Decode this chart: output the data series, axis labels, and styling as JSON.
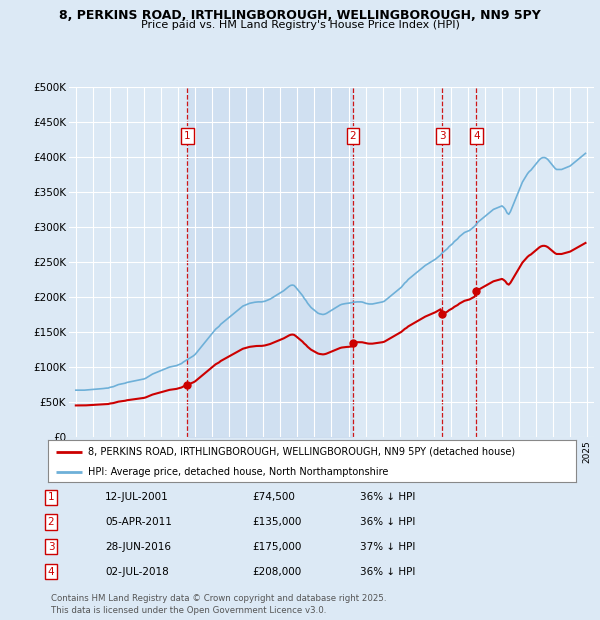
{
  "title_line1": "8, PERKINS ROAD, IRTHLINGBOROUGH, WELLINGBOROUGH, NN9 5PY",
  "title_line2": "Price paid vs. HM Land Registry's House Price Index (HPI)",
  "bg_color": "#dce9f5",
  "plot_bg_color": "#dce9f5",
  "red_line_color": "#cc0000",
  "blue_line_color": "#6eb0d8",
  "shade_color": "#c5d8ee",
  "marker_color": "#cc0000",
  "ylim": [
    0,
    500000
  ],
  "yticks": [
    0,
    50000,
    100000,
    150000,
    200000,
    250000,
    300000,
    350000,
    400000,
    450000,
    500000
  ],
  "ytick_labels": [
    "£0",
    "£50K",
    "£100K",
    "£150K",
    "£200K",
    "£250K",
    "£300K",
    "£350K",
    "£400K",
    "£450K",
    "£500K"
  ],
  "xlim_start": 1994.6,
  "xlim_end": 2025.4,
  "transactions": [
    {
      "num": 1,
      "year": 2001.53,
      "price": 74500,
      "date": "12-JUL-2001",
      "pct": "36%",
      "dir": "↓"
    },
    {
      "num": 2,
      "year": 2011.26,
      "price": 135000,
      "date": "05-APR-2011",
      "pct": "36%",
      "dir": "↓"
    },
    {
      "num": 3,
      "year": 2016.49,
      "price": 175000,
      "date": "28-JUN-2016",
      "pct": "37%",
      "dir": "↓"
    },
    {
      "num": 4,
      "year": 2018.5,
      "price": 208000,
      "date": "02-JUL-2018",
      "pct": "36%",
      "dir": "↓"
    }
  ],
  "legend_red": "8, PERKINS ROAD, IRTHLINGBOROUGH, WELLINGBOROUGH, NN9 5PY (detached house)",
  "legend_blue": "HPI: Average price, detached house, North Northamptonshire",
  "footer": "Contains HM Land Registry data © Crown copyright and database right 2025.\nThis data is licensed under the Open Government Licence v3.0.",
  "hpi_data": {
    "years": [
      1995.0,
      1995.1,
      1995.2,
      1995.3,
      1995.4,
      1995.5,
      1995.6,
      1995.7,
      1995.8,
      1995.9,
      1996.0,
      1996.1,
      1996.2,
      1996.3,
      1996.4,
      1996.5,
      1996.6,
      1996.7,
      1996.8,
      1996.9,
      1997.0,
      1997.1,
      1997.2,
      1997.3,
      1997.4,
      1997.5,
      1997.6,
      1997.7,
      1997.8,
      1997.9,
      1998.0,
      1998.1,
      1998.2,
      1998.3,
      1998.4,
      1998.5,
      1998.6,
      1998.7,
      1998.8,
      1998.9,
      1999.0,
      1999.1,
      1999.2,
      1999.3,
      1999.4,
      1999.5,
      1999.6,
      1999.7,
      1999.8,
      1999.9,
      2000.0,
      2000.1,
      2000.2,
      2000.3,
      2000.4,
      2000.5,
      2000.6,
      2000.7,
      2000.8,
      2000.9,
      2001.0,
      2001.1,
      2001.2,
      2001.3,
      2001.4,
      2001.5,
      2001.6,
      2001.7,
      2001.8,
      2001.9,
      2002.0,
      2002.1,
      2002.2,
      2002.3,
      2002.4,
      2002.5,
      2002.6,
      2002.7,
      2002.8,
      2002.9,
      2003.0,
      2003.1,
      2003.2,
      2003.3,
      2003.4,
      2003.5,
      2003.6,
      2003.7,
      2003.8,
      2003.9,
      2004.0,
      2004.1,
      2004.2,
      2004.3,
      2004.4,
      2004.5,
      2004.6,
      2004.7,
      2004.8,
      2004.9,
      2005.0,
      2005.1,
      2005.2,
      2005.3,
      2005.4,
      2005.5,
      2005.6,
      2005.7,
      2005.8,
      2005.9,
      2006.0,
      2006.1,
      2006.2,
      2006.3,
      2006.4,
      2006.5,
      2006.6,
      2006.7,
      2006.8,
      2006.9,
      2007.0,
      2007.1,
      2007.2,
      2007.3,
      2007.4,
      2007.5,
      2007.6,
      2007.7,
      2007.8,
      2007.9,
      2008.0,
      2008.1,
      2008.2,
      2008.3,
      2008.4,
      2008.5,
      2008.6,
      2008.7,
      2008.8,
      2008.9,
      2009.0,
      2009.1,
      2009.2,
      2009.3,
      2009.4,
      2009.5,
      2009.6,
      2009.7,
      2009.8,
      2009.9,
      2010.0,
      2010.1,
      2010.2,
      2010.3,
      2010.4,
      2010.5,
      2010.6,
      2010.7,
      2010.8,
      2010.9,
      2011.0,
      2011.1,
      2011.2,
      2011.3,
      2011.4,
      2011.5,
      2011.6,
      2011.7,
      2011.8,
      2011.9,
      2012.0,
      2012.1,
      2012.2,
      2012.3,
      2012.4,
      2012.5,
      2012.6,
      2012.7,
      2012.8,
      2012.9,
      2013.0,
      2013.1,
      2013.2,
      2013.3,
      2013.4,
      2013.5,
      2013.6,
      2013.7,
      2013.8,
      2013.9,
      2014.0,
      2014.1,
      2014.2,
      2014.3,
      2014.4,
      2014.5,
      2014.6,
      2014.7,
      2014.8,
      2014.9,
      2015.0,
      2015.1,
      2015.2,
      2015.3,
      2015.4,
      2015.5,
      2015.6,
      2015.7,
      2015.8,
      2015.9,
      2016.0,
      2016.1,
      2016.2,
      2016.3,
      2016.4,
      2016.5,
      2016.6,
      2016.7,
      2016.8,
      2016.9,
      2017.0,
      2017.1,
      2017.2,
      2017.3,
      2017.4,
      2017.5,
      2017.6,
      2017.7,
      2017.8,
      2017.9,
      2018.0,
      2018.1,
      2018.2,
      2018.3,
      2018.4,
      2018.5,
      2018.6,
      2018.7,
      2018.8,
      2018.9,
      2019.0,
      2019.1,
      2019.2,
      2019.3,
      2019.4,
      2019.5,
      2019.6,
      2019.7,
      2019.8,
      2019.9,
      2020.0,
      2020.1,
      2020.2,
      2020.3,
      2020.4,
      2020.5,
      2020.6,
      2020.7,
      2020.8,
      2020.9,
      2021.0,
      2021.1,
      2021.2,
      2021.3,
      2021.4,
      2021.5,
      2021.6,
      2021.7,
      2021.8,
      2021.9,
      2022.0,
      2022.1,
      2022.2,
      2022.3,
      2022.4,
      2022.5,
      2022.6,
      2022.7,
      2022.8,
      2022.9,
      2023.0,
      2023.1,
      2023.2,
      2023.3,
      2023.4,
      2023.5,
      2023.6,
      2023.7,
      2023.8,
      2023.9,
      2024.0,
      2024.1,
      2024.2,
      2024.3,
      2024.4,
      2024.5,
      2024.6,
      2024.7,
      2024.8,
      2024.9
    ],
    "values": [
      67000,
      67000,
      67000,
      67000,
      67000,
      67000,
      67200,
      67400,
      67600,
      67800,
      68000,
      68200,
      68400,
      68600,
      68800,
      69000,
      69300,
      69600,
      69900,
      70000,
      71000,
      71500,
      72000,
      73000,
      74000,
      75000,
      75500,
      76000,
      76500,
      77000,
      78000,
      78500,
      79000,
      79500,
      80000,
      80500,
      81000,
      81500,
      82000,
      82500,
      83000,
      84000,
      85500,
      87000,
      88500,
      90000,
      91000,
      92000,
      93000,
      94000,
      95000,
      96000,
      97000,
      98000,
      99000,
      100000,
      100500,
      101000,
      101500,
      102000,
      103000,
      104000,
      105000,
      107000,
      108500,
      110000,
      111500,
      113000,
      114500,
      116000,
      118000,
      121000,
      124000,
      127000,
      130000,
      133000,
      136000,
      139000,
      142000,
      145000,
      148000,
      151000,
      154000,
      156000,
      158000,
      161000,
      163000,
      165000,
      167000,
      169000,
      171000,
      173000,
      175000,
      177000,
      179000,
      181000,
      183000,
      185000,
      187000,
      188000,
      189000,
      190000,
      191000,
      191500,
      192000,
      192500,
      192800,
      193000,
      193000,
      193000,
      193500,
      194000,
      195000,
      196000,
      197000,
      198500,
      200000,
      201500,
      203000,
      204500,
      206000,
      207500,
      209000,
      211000,
      213000,
      215000,
      216500,
      217000,
      216500,
      214000,
      211000,
      208000,
      205000,
      202000,
      198000,
      195000,
      191000,
      188000,
      185000,
      183000,
      181000,
      179000,
      177000,
      176000,
      175500,
      175000,
      175500,
      176500,
      178000,
      179500,
      181000,
      182500,
      184000,
      185500,
      187000,
      188500,
      189500,
      190000,
      190500,
      190800,
      191000,
      191500,
      192000,
      192500,
      192800,
      193000,
      193000,
      193000,
      192800,
      192000,
      191000,
      190500,
      190000,
      190000,
      190000,
      190500,
      191000,
      191500,
      192000,
      192500,
      193000,
      194000,
      196000,
      198000,
      200000,
      202000,
      204000,
      206000,
      208000,
      210000,
      212000,
      214000,
      217000,
      220000,
      222000,
      225000,
      227000,
      229000,
      231000,
      233000,
      235000,
      237000,
      239000,
      241000,
      243000,
      245000,
      246500,
      248000,
      249500,
      251000,
      252500,
      254000,
      256000,
      258000,
      260000,
      263000,
      265000,
      267000,
      269000,
      272000,
      274000,
      276000,
      279000,
      281000,
      283000,
      286000,
      288000,
      290000,
      292000,
      293000,
      294000,
      295000,
      297000,
      299000,
      301000,
      304000,
      307000,
      309000,
      311000,
      313000,
      315000,
      317000,
      319000,
      321000,
      323000,
      325000,
      326000,
      327000,
      328000,
      329000,
      330000,
      328000,
      325000,
      320000,
      318000,
      322000,
      328000,
      334000,
      340000,
      346000,
      352000,
      358000,
      364000,
      368000,
      372000,
      376000,
      379000,
      381000,
      384000,
      387000,
      390000,
      393000,
      396000,
      398000,
      399000,
      399000,
      398000,
      396000,
      393000,
      390000,
      387000,
      384000,
      382000,
      382000,
      382000,
      382000,
      383000,
      384000,
      385000,
      386000,
      387000,
      389000,
      391000,
      393000,
      395000,
      397000,
      399000,
      401000,
      403000,
      405000
    ]
  }
}
